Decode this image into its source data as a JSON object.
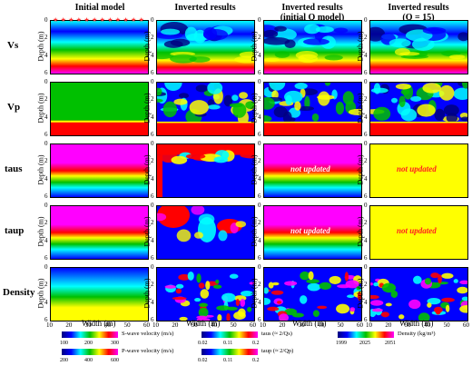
{
  "columns": [
    {
      "title": "Initial model"
    },
    {
      "title": "Inverted results"
    },
    {
      "title": "Inverted results\n(initial Q model)"
    },
    {
      "title": "Inverted results\n(Q = 15)"
    }
  ],
  "rows": [
    {
      "label": "Vs"
    },
    {
      "label": "Vp"
    },
    {
      "label": "taus"
    },
    {
      "label": "taup"
    },
    {
      "label": "Density"
    }
  ],
  "depth_axis": {
    "label": "Depth (m)",
    "ticks": [
      "0",
      "2",
      "4",
      "6"
    ]
  },
  "width_axis": {
    "label": "Width (m)",
    "ticks": [
      "10",
      "20",
      "30",
      "40",
      "50",
      "60"
    ]
  },
  "not_updated_text": "not updated",
  "colorbars": [
    {
      "label": "S-wave velocity (m/s)",
      "ticks": [
        "100",
        "200",
        "300"
      ]
    },
    {
      "label": "taus (≈ 2/Qs)",
      "ticks": [
        "0.02",
        "0.11",
        "0.2"
      ]
    },
    {
      "label": "Density (kg/m³)",
      "ticks": [
        "1999",
        "2025",
        "2051"
      ]
    },
    {
      "label": "P-wave velocity (m/s)",
      "ticks": [
        "200",
        "400",
        "600"
      ]
    },
    {
      "label": "taup (≈ 2/Qp)",
      "ticks": [
        "0.02",
        "0.11",
        "0.2"
      ]
    }
  ],
  "colors": {
    "magenta": "#ff00ff",
    "red": "#ff0000",
    "yellow": "#ffff00",
    "green": "#00c000",
    "cyan": "#00ffff",
    "blue": "#0000ff",
    "navy": "#000080",
    "source_marker": "#ff3030"
  }
}
